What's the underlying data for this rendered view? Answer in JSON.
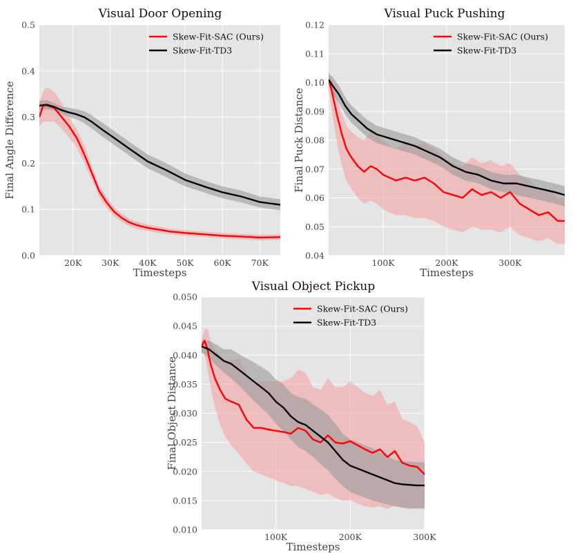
{
  "colors": {
    "plot_bg": "#e5e5e5",
    "grid": "#ffffff",
    "sac": "#ff0000",
    "sac_band": "#f4a3a3",
    "td3": "#000000",
    "td3_band": "#999999"
  },
  "chart_data": [
    {
      "type": "line",
      "title": "Visual Door Opening",
      "xlabel": "Timesteps",
      "ylabel": "Final Angle Difference",
      "xlim": [
        11000,
        75500
      ],
      "ylim": [
        0.0,
        0.5
      ],
      "xticks": [
        20000,
        30000,
        40000,
        50000,
        60000,
        70000
      ],
      "xtick_labels": [
        "20K",
        "30K",
        "40K",
        "50K",
        "60K",
        "70K"
      ],
      "yticks": [
        0.0,
        0.1,
        0.2,
        0.3,
        0.4,
        0.5
      ],
      "ytick_labels": [
        "0.0",
        "0.1",
        "0.2",
        "0.3",
        "0.4",
        "0.5"
      ],
      "legend": "top-right",
      "grid": true,
      "series": [
        {
          "name": "Skew-Fit-SAC (Ours)",
          "color": "#ff0000",
          "band_color": "#f4a3a3",
          "x": [
            11000,
            12000,
            13000,
            15000,
            17000,
            19000,
            21000,
            23000,
            25000,
            27000,
            29000,
            31000,
            33000,
            35000,
            37000,
            40000,
            43000,
            46000,
            50000,
            55000,
            60000,
            65000,
            70000,
            75500
          ],
          "y": [
            0.3,
            0.325,
            0.325,
            0.32,
            0.3,
            0.28,
            0.255,
            0.22,
            0.18,
            0.14,
            0.115,
            0.095,
            0.082,
            0.072,
            0.066,
            0.06,
            0.056,
            0.052,
            0.049,
            0.046,
            0.043,
            0.041,
            0.039,
            0.04
          ],
          "lower": [
            0.28,
            0.29,
            0.29,
            0.29,
            0.275,
            0.255,
            0.235,
            0.2,
            0.165,
            0.128,
            0.103,
            0.085,
            0.073,
            0.064,
            0.058,
            0.053,
            0.049,
            0.046,
            0.043,
            0.04,
            0.037,
            0.035,
            0.033,
            0.034
          ],
          "upper": [
            0.33,
            0.355,
            0.365,
            0.355,
            0.33,
            0.3,
            0.275,
            0.24,
            0.195,
            0.152,
            0.127,
            0.105,
            0.091,
            0.08,
            0.074,
            0.067,
            0.063,
            0.058,
            0.055,
            0.052,
            0.049,
            0.047,
            0.045,
            0.046
          ]
        },
        {
          "name": "Skew-Fit-TD3",
          "color": "#000000",
          "band_color": "#999999",
          "x": [
            11000,
            13000,
            15000,
            17000,
            19000,
            21000,
            23000,
            25000,
            28000,
            31000,
            35000,
            40000,
            45000,
            50000,
            55000,
            60000,
            65000,
            70000,
            75500
          ],
          "y": [
            0.325,
            0.327,
            0.322,
            0.315,
            0.31,
            0.306,
            0.3,
            0.29,
            0.272,
            0.255,
            0.232,
            0.204,
            0.185,
            0.164,
            0.15,
            0.137,
            0.128,
            0.116,
            0.11
          ],
          "lower": [
            0.315,
            0.317,
            0.314,
            0.307,
            0.3,
            0.295,
            0.287,
            0.276,
            0.257,
            0.24,
            0.217,
            0.189,
            0.17,
            0.15,
            0.137,
            0.124,
            0.115,
            0.104,
            0.098
          ],
          "upper": [
            0.335,
            0.337,
            0.33,
            0.323,
            0.32,
            0.317,
            0.313,
            0.304,
            0.287,
            0.27,
            0.247,
            0.219,
            0.2,
            0.178,
            0.163,
            0.15,
            0.141,
            0.128,
            0.122
          ]
        }
      ]
    },
    {
      "type": "line",
      "title": "Visual Puck Pushing",
      "xlabel": "Timesteps",
      "ylabel": "Final Puck Distance",
      "xlim": [
        14000,
        386000
      ],
      "ylim": [
        0.04,
        0.12
      ],
      "xticks": [
        100000,
        200000,
        300000
      ],
      "xtick_labels": [
        "100K",
        "200K",
        "300K"
      ],
      "yticks": [
        0.04,
        0.05,
        0.06,
        0.07,
        0.08,
        0.09,
        0.1,
        0.11,
        0.12
      ],
      "ytick_labels": [
        "0.04",
        "0.05",
        "0.06",
        "0.07",
        "0.08",
        "0.09",
        "0.10",
        "0.11",
        "0.12"
      ],
      "legend": "top-right",
      "grid": true,
      "series": [
        {
          "name": "Skew-Fit-SAC (Ours)",
          "color": "#ff0000",
          "band_color": "#f4a3a3",
          "x": [
            14000,
            18000,
            22000,
            28000,
            35000,
            42000,
            50000,
            60000,
            70000,
            80000,
            90000,
            100000,
            110000,
            120000,
            135000,
            150000,
            165000,
            180000,
            195000,
            210000,
            225000,
            240000,
            255000,
            270000,
            285000,
            300000,
            315000,
            330000,
            345000,
            360000,
            375000,
            386000
          ],
          "y": [
            0.101,
            0.098,
            0.094,
            0.088,
            0.082,
            0.077,
            0.074,
            0.071,
            0.069,
            0.071,
            0.07,
            0.068,
            0.067,
            0.066,
            0.067,
            0.066,
            0.067,
            0.065,
            0.062,
            0.061,
            0.06,
            0.063,
            0.061,
            0.062,
            0.06,
            0.062,
            0.058,
            0.056,
            0.054,
            0.055,
            0.052,
            0.052
          ],
          "lower": [
            0.098,
            0.092,
            0.086,
            0.078,
            0.071,
            0.066,
            0.063,
            0.06,
            0.058,
            0.059,
            0.058,
            0.056,
            0.055,
            0.054,
            0.054,
            0.053,
            0.053,
            0.052,
            0.05,
            0.049,
            0.048,
            0.05,
            0.049,
            0.049,
            0.048,
            0.05,
            0.047,
            0.046,
            0.045,
            0.046,
            0.044,
            0.044
          ],
          "upper": [
            0.104,
            0.102,
            0.099,
            0.094,
            0.089,
            0.085,
            0.083,
            0.081,
            0.08,
            0.083,
            0.082,
            0.08,
            0.078,
            0.077,
            0.079,
            0.078,
            0.079,
            0.077,
            0.074,
            0.072,
            0.071,
            0.074,
            0.072,
            0.073,
            0.071,
            0.072,
            0.068,
            0.066,
            0.063,
            0.063,
            0.06,
            0.06
          ]
        },
        {
          "name": "Skew-Fit-TD3",
          "color": "#000000",
          "band_color": "#999999",
          "x": [
            14000,
            20000,
            30000,
            40000,
            50000,
            60000,
            75000,
            90000,
            105000,
            120000,
            135000,
            150000,
            170000,
            190000,
            210000,
            230000,
            250000,
            270000,
            290000,
            310000,
            330000,
            350000,
            370000,
            386000
          ],
          "y": [
            0.101,
            0.099,
            0.096,
            0.092,
            0.089,
            0.087,
            0.084,
            0.082,
            0.081,
            0.08,
            0.079,
            0.078,
            0.076,
            0.074,
            0.071,
            0.069,
            0.068,
            0.066,
            0.065,
            0.065,
            0.064,
            0.063,
            0.062,
            0.061
          ],
          "lower": [
            0.099,
            0.096,
            0.093,
            0.089,
            0.086,
            0.084,
            0.081,
            0.079,
            0.078,
            0.077,
            0.076,
            0.075,
            0.073,
            0.071,
            0.068,
            0.066,
            0.065,
            0.063,
            0.062,
            0.061,
            0.06,
            0.059,
            0.058,
            0.057
          ],
          "upper": [
            0.103,
            0.102,
            0.099,
            0.095,
            0.092,
            0.09,
            0.087,
            0.085,
            0.084,
            0.083,
            0.082,
            0.081,
            0.079,
            0.077,
            0.074,
            0.072,
            0.071,
            0.069,
            0.068,
            0.068,
            0.067,
            0.066,
            0.065,
            0.064
          ]
        }
      ]
    },
    {
      "type": "line",
      "title": "Visual Object Pickup",
      "xlabel": "Timesteps",
      "ylabel": "Final Object Distance",
      "xlim": [
        0,
        300000
      ],
      "ylim": [
        0.01,
        0.05
      ],
      "xticks": [
        100000,
        200000,
        300000
      ],
      "xtick_labels": [
        "100K",
        "200K",
        "300K"
      ],
      "yticks": [
        0.01,
        0.015,
        0.02,
        0.025,
        0.03,
        0.035,
        0.04,
        0.045,
        0.05
      ],
      "ytick_labels": [
        "0.010",
        "0.015",
        "0.020",
        "0.025",
        "0.030",
        "0.035",
        "0.040",
        "0.045",
        "0.050"
      ],
      "legend": "top-right",
      "grid": true,
      "series": [
        {
          "name": "Skew-Fit-SAC (Ours)",
          "color": "#ff0000",
          "band_color": "#f4a3a3",
          "x": [
            0,
            4000,
            8000,
            12000,
            18000,
            25000,
            32000,
            40000,
            50000,
            60000,
            70000,
            80000,
            90000,
            100000,
            110000,
            120000,
            130000,
            140000,
            150000,
            160000,
            170000,
            180000,
            190000,
            200000,
            210000,
            220000,
            230000,
            240000,
            250000,
            260000,
            270000,
            280000,
            290000,
            300000
          ],
          "y": [
            0.0415,
            0.0425,
            0.041,
            0.0385,
            0.036,
            0.034,
            0.0325,
            0.032,
            0.0315,
            0.029,
            0.0275,
            0.0275,
            0.0272,
            0.027,
            0.0268,
            0.0265,
            0.0275,
            0.027,
            0.0255,
            0.025,
            0.0262,
            0.025,
            0.0248,
            0.0252,
            0.0245,
            0.0238,
            0.0232,
            0.0238,
            0.0225,
            0.0235,
            0.0215,
            0.021,
            0.0208,
            0.0195
          ],
          "lower": [
            0.0405,
            0.04,
            0.0375,
            0.0345,
            0.031,
            0.028,
            0.026,
            0.0245,
            0.023,
            0.0215,
            0.02,
            0.0195,
            0.019,
            0.0185,
            0.018,
            0.0175,
            0.0175,
            0.017,
            0.0165,
            0.016,
            0.0162,
            0.0155,
            0.015,
            0.015,
            0.0145,
            0.014,
            0.0138,
            0.014,
            0.0135,
            0.0142,
            0.0138,
            0.0135,
            0.0138,
            0.0138
          ],
          "upper": [
            0.0425,
            0.0445,
            0.0445,
            0.0425,
            0.041,
            0.04,
            0.039,
            0.039,
            0.0395,
            0.037,
            0.035,
            0.0355,
            0.0355,
            0.0355,
            0.0355,
            0.036,
            0.0375,
            0.037,
            0.0345,
            0.034,
            0.036,
            0.0345,
            0.0345,
            0.0355,
            0.0345,
            0.0335,
            0.033,
            0.034,
            0.0315,
            0.032,
            0.029,
            0.0285,
            0.0278,
            0.025
          ]
        },
        {
          "name": "Skew-Fit-TD3",
          "color": "#000000",
          "band_color": "#999999",
          "x": [
            0,
            10000,
            20000,
            30000,
            40000,
            50000,
            60000,
            70000,
            80000,
            90000,
            100000,
            110000,
            120000,
            130000,
            140000,
            150000,
            160000,
            170000,
            180000,
            190000,
            200000,
            210000,
            220000,
            230000,
            240000,
            250000,
            260000,
            270000,
            280000,
            290000,
            300000
          ],
          "y": [
            0.0415,
            0.041,
            0.04,
            0.039,
            0.0385,
            0.0375,
            0.0365,
            0.0355,
            0.0345,
            0.0335,
            0.032,
            0.031,
            0.0295,
            0.0285,
            0.028,
            0.027,
            0.026,
            0.025,
            0.0235,
            0.022,
            0.021,
            0.0205,
            0.02,
            0.0195,
            0.019,
            0.0185,
            0.018,
            0.0178,
            0.0177,
            0.0176,
            0.0176
          ],
          "lower": [
            0.0405,
            0.0395,
            0.0382,
            0.037,
            0.036,
            0.0348,
            0.0335,
            0.0322,
            0.031,
            0.0298,
            0.0282,
            0.027,
            0.0255,
            0.0242,
            0.0235,
            0.0225,
            0.0213,
            0.0202,
            0.0188,
            0.0175,
            0.0165,
            0.016,
            0.0155,
            0.015,
            0.0147,
            0.0143,
            0.014,
            0.0138,
            0.0137,
            0.0136,
            0.0136
          ],
          "upper": [
            0.0425,
            0.0425,
            0.0418,
            0.041,
            0.041,
            0.0402,
            0.0395,
            0.0388,
            0.038,
            0.0372,
            0.0358,
            0.035,
            0.0335,
            0.0328,
            0.0325,
            0.0315,
            0.0307,
            0.0298,
            0.0282,
            0.0265,
            0.0255,
            0.025,
            0.0245,
            0.024,
            0.0233,
            0.0227,
            0.022,
            0.0218,
            0.0217,
            0.0216,
            0.0216
          ]
        }
      ]
    }
  ]
}
